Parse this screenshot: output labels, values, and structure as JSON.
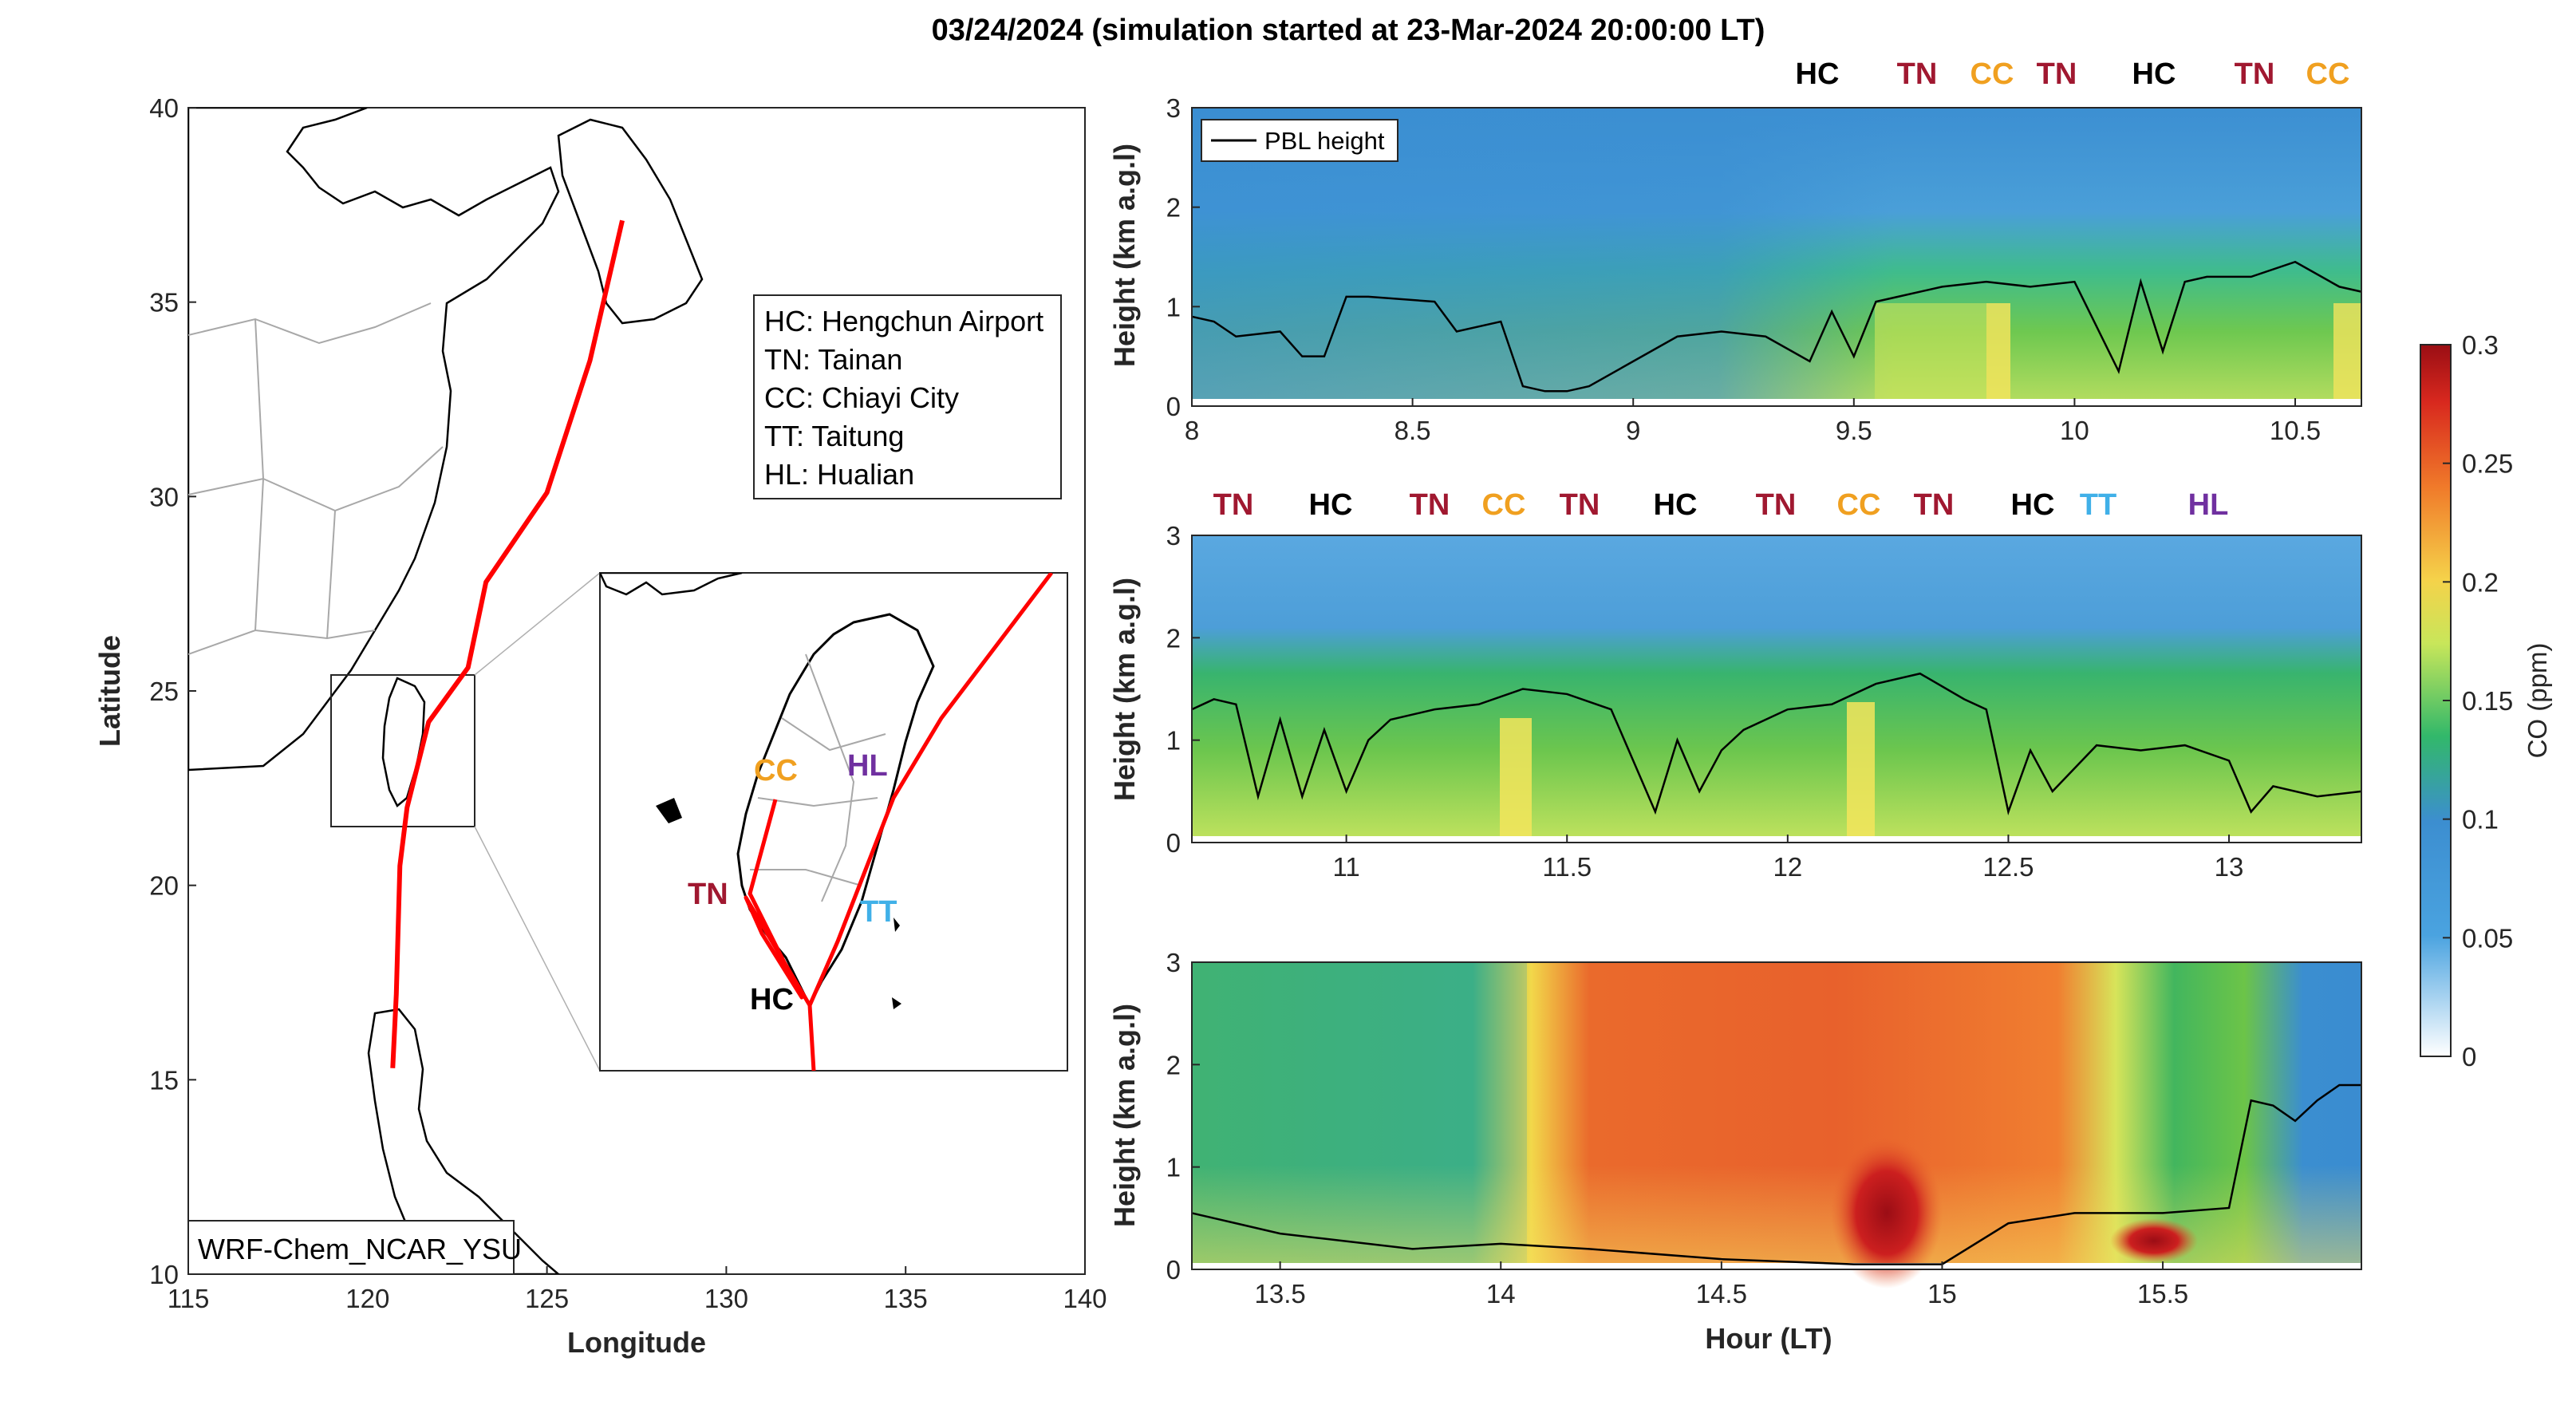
{
  "title": "03/24/2024 (simulation started at 23-Mar-2024 20:00:00 LT)",
  "map": {
    "xlabel": "Longitude",
    "ylabel": "Latitude",
    "xticks": [
      "115",
      "120",
      "125",
      "130",
      "135",
      "140"
    ],
    "yticks": [
      "10",
      "15",
      "20",
      "25",
      "30",
      "35",
      "40"
    ],
    "xlim": [
      115,
      140
    ],
    "ylim": [
      10,
      40
    ],
    "model_label": "WRF-Chem_NCAR_YSU",
    "legend": [
      "HC: Hengchun Airport",
      "TN: Tainan",
      "CC: Chiayi City",
      "TT: Taitung",
      "HL: Hualian"
    ],
    "track_color": "#ff0000",
    "track": [
      [
        127.1,
        37.1
      ],
      [
        126.2,
        33.5
      ],
      [
        125.0,
        30.1
      ],
      [
        123.3,
        27.8
      ],
      [
        122.8,
        25.6
      ],
      [
        121.7,
        24.2
      ],
      [
        121.1,
        22.0
      ],
      [
        120.9,
        20.5
      ],
      [
        120.8,
        17.2
      ],
      [
        120.7,
        15.3
      ]
    ],
    "inset_labels": [
      {
        "text": "CC",
        "color": "#f0a020"
      },
      {
        "text": "HL",
        "color": "#7030a0"
      },
      {
        "text": "TN",
        "color": "#a01830"
      },
      {
        "text": "TT",
        "color": "#40b0e8"
      },
      {
        "text": "HC",
        "color": "#000000"
      }
    ]
  },
  "panels": {
    "ylabel": "Height (km a.g.l)",
    "xlabel": "Hour (LT)",
    "legend_label": "PBL height",
    "yticks": [
      "0",
      "1",
      "2",
      "3"
    ],
    "panel1": {
      "xticks": [
        "8",
        "8.5",
        "9",
        "9.5",
        "10",
        "10.5"
      ],
      "top_labels": [
        {
          "text": "HC",
          "color": "#000000"
        },
        {
          "text": "TN",
          "color": "#a01830"
        },
        {
          "text": "CC",
          "color": "#f0a020"
        },
        {
          "text": "TN",
          "color": "#a01830"
        },
        {
          "text": "HC",
          "color": "#000000"
        },
        {
          "text": "TN",
          "color": "#a01830"
        },
        {
          "text": "CC",
          "color": "#f0a020"
        }
      ]
    },
    "panel2": {
      "xticks": [
        "11",
        "11.5",
        "12",
        "12.5",
        "13"
      ],
      "top_labels": [
        {
          "text": "TN",
          "color": "#a01830"
        },
        {
          "text": "HC",
          "color": "#000000"
        },
        {
          "text": "TN",
          "color": "#a01830"
        },
        {
          "text": "CC",
          "color": "#f0a020"
        },
        {
          "text": "TN",
          "color": "#a01830"
        },
        {
          "text": "HC",
          "color": "#000000"
        },
        {
          "text": "TN",
          "color": "#a01830"
        },
        {
          "text": "CC",
          "color": "#f0a020"
        },
        {
          "text": "TN",
          "color": "#a01830"
        },
        {
          "text": "HC",
          "color": "#000000"
        },
        {
          "text": "TT",
          "color": "#40b0e8"
        },
        {
          "text": "HL",
          "color": "#7030a0"
        }
      ]
    },
    "panel3": {
      "xticks": [
        "13.5",
        "14",
        "14.5",
        "15",
        "15.5"
      ]
    }
  },
  "colorbar": {
    "label": "CO (ppm)",
    "ticks": [
      "0",
      "0.05",
      "0.1",
      "0.15",
      "0.2",
      "0.25",
      "0.3"
    ],
    "range": [
      0,
      0.3
    ]
  },
  "chart_data": [
    {
      "type": "line",
      "title": "",
      "xlabel": "Longitude",
      "ylabel": "Latitude",
      "xlim": [
        115,
        140
      ],
      "ylim": [
        10,
        40
      ],
      "series": [
        {
          "x": [
            127.1,
            126.2,
            125.0,
            123.3,
            122.8,
            121.7,
            121.1,
            120.9,
            120.8,
            120.7
          ],
          "y": [
            37.1,
            33.5,
            30.1,
            27.8,
            25.6,
            24.2,
            22.0,
            20.5,
            17.2,
            15.3
          ]
        }
      ]
    },
    {
      "type": "heatmap",
      "xlabel": "",
      "ylabel": "Height (km a.g.l)",
      "xlim": [
        8,
        10.65
      ],
      "ylim": [
        0,
        3
      ],
      "pbl_x": [
        8.0,
        8.05,
        8.1,
        8.2,
        8.25,
        8.3,
        8.35,
        8.4,
        8.55,
        8.6,
        8.7,
        8.75,
        8.8,
        8.85,
        8.9,
        9.0,
        9.1,
        9.2,
        9.3,
        9.4,
        9.45,
        9.5,
        9.55,
        9.6,
        9.7,
        9.8,
        9.9,
        10.0,
        10.1,
        10.15,
        10.2,
        10.25,
        10.3,
        10.4,
        10.5,
        10.6,
        10.65
      ],
      "pbl_y": [
        0.9,
        0.85,
        0.7,
        0.75,
        0.5,
        0.5,
        1.1,
        1.1,
        1.05,
        0.75,
        0.85,
        0.2,
        0.15,
        0.15,
        0.2,
        0.45,
        0.7,
        0.75,
        0.7,
        0.45,
        0.95,
        0.5,
        1.05,
        1.1,
        1.2,
        1.25,
        1.2,
        1.25,
        0.35,
        1.25,
        0.55,
        1.25,
        1.3,
        1.3,
        1.45,
        1.2,
        1.15
      ]
    },
    {
      "type": "heatmap",
      "xlabel": "",
      "ylabel": "Height (km a.g.l)",
      "xlim": [
        10.65,
        13.3
      ],
      "ylim": [
        0,
        3
      ],
      "pbl_x": [
        10.65,
        10.7,
        10.75,
        10.8,
        10.85,
        10.9,
        10.95,
        11.0,
        11.05,
        11.1,
        11.2,
        11.3,
        11.4,
        11.5,
        11.6,
        11.7,
        11.75,
        11.8,
        11.85,
        11.9,
        12.0,
        12.1,
        12.2,
        12.3,
        12.4,
        12.45,
        12.5,
        12.55,
        12.6,
        12.7,
        12.8,
        12.9,
        13.0,
        13.05,
        13.1,
        13.2,
        13.3
      ],
      "pbl_y": [
        1.3,
        1.4,
        1.35,
        0.45,
        1.2,
        0.45,
        1.1,
        0.5,
        1.0,
        1.2,
        1.3,
        1.35,
        1.5,
        1.45,
        1.3,
        0.3,
        1.0,
        0.5,
        0.9,
        1.1,
        1.3,
        1.35,
        1.55,
        1.65,
        1.4,
        1.3,
        0.3,
        0.9,
        0.5,
        0.95,
        0.9,
        0.95,
        0.8,
        0.3,
        0.55,
        0.45,
        0.5
      ]
    },
    {
      "type": "heatmap",
      "xlabel": "Hour (LT)",
      "ylabel": "Height (km a.g.l)",
      "xlim": [
        13.3,
        15.95
      ],
      "ylim": [
        0,
        3
      ],
      "pbl_x": [
        13.3,
        13.4,
        13.5,
        13.6,
        13.8,
        14.0,
        14.2,
        14.5,
        14.8,
        15.0,
        15.15,
        15.3,
        15.5,
        15.65,
        15.7,
        15.75,
        15.8,
        15.85,
        15.9,
        15.95
      ],
      "pbl_y": [
        0.55,
        0.45,
        0.35,
        0.3,
        0.2,
        0.25,
        0.2,
        0.1,
        0.05,
        0.05,
        0.45,
        0.55,
        0.55,
        0.6,
        1.65,
        1.6,
        1.45,
        1.65,
        1.8,
        1.8
      ]
    }
  ]
}
